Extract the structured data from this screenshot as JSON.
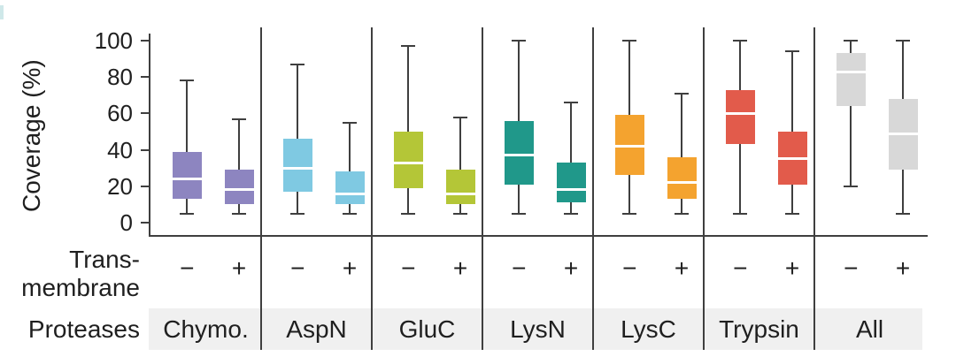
{
  "labels": {
    "ylabel": "Coverage (%)",
    "transmembrane_line1": "Trans-",
    "transmembrane_line2": "membrane",
    "proteases": "Proteases"
  },
  "colors": {
    "axis": "#3f3f3f",
    "median_line": "#ffffff",
    "proteases_band": "#f0f0f0",
    "background": "#ffffff",
    "text": "#1f1f1f"
  },
  "chart_data": {
    "type": "box",
    "title": "",
    "ylabel": "Coverage (%)",
    "ylim": [
      0,
      100
    ],
    "yticks": [
      0,
      20,
      40,
      60,
      80,
      100
    ],
    "grid": false,
    "pair_row_label": "Trans-membrane",
    "group_row_label": "Proteases",
    "pair_labels": [
      "−",
      "+"
    ],
    "groups": [
      {
        "label": "Chymo.",
        "color": "#8d85c0",
        "boxes": [
          {
            "transmembrane": "−",
            "whisker_low": 5,
            "q1": 13,
            "median": 24,
            "q3": 39,
            "whisker_high": 78
          },
          {
            "transmembrane": "+",
            "whisker_low": 5,
            "q1": 10,
            "median": 18,
            "q3": 29,
            "whisker_high": 57
          }
        ]
      },
      {
        "label": "AspN",
        "color": "#7fc9e2",
        "boxes": [
          {
            "transmembrane": "−",
            "whisker_low": 5,
            "q1": 17,
            "median": 30,
            "q3": 46,
            "whisker_high": 87
          },
          {
            "transmembrane": "+",
            "whisker_low": 5,
            "q1": 10,
            "median": 16,
            "q3": 28,
            "whisker_high": 55
          }
        ]
      },
      {
        "label": "GluC",
        "color": "#b4c637",
        "boxes": [
          {
            "transmembrane": "−",
            "whisker_low": 5,
            "q1": 19,
            "median": 33,
            "q3": 50,
            "whisker_high": 97
          },
          {
            "transmembrane": "+",
            "whisker_low": 5,
            "q1": 10,
            "median": 16,
            "q3": 29,
            "whisker_high": 58
          }
        ]
      },
      {
        "label": "LysN",
        "color": "#20988a",
        "boxes": [
          {
            "transmembrane": "−",
            "whisker_low": 5,
            "q1": 21,
            "median": 37,
            "q3": 56,
            "whisker_high": 100
          },
          {
            "transmembrane": "+",
            "whisker_low": 5,
            "q1": 11,
            "median": 18,
            "q3": 33,
            "whisker_high": 66
          }
        ]
      },
      {
        "label": "LysC",
        "color": "#f4a32f",
        "boxes": [
          {
            "transmembrane": "−",
            "whisker_low": 5,
            "q1": 26,
            "median": 42,
            "q3": 59,
            "whisker_high": 100
          },
          {
            "transmembrane": "+",
            "whisker_low": 5,
            "q1": 13,
            "median": 22,
            "q3": 36,
            "whisker_high": 71
          }
        ]
      },
      {
        "label": "Trypsin",
        "color": "#e25b4b",
        "boxes": [
          {
            "transmembrane": "−",
            "whisker_low": 5,
            "q1": 43,
            "median": 60,
            "q3": 73,
            "whisker_high": 100
          },
          {
            "transmembrane": "+",
            "whisker_low": 5,
            "q1": 21,
            "median": 35,
            "q3": 50,
            "whisker_high": 94
          }
        ]
      },
      {
        "label": "All",
        "color": "#d8d8d8",
        "boxes": [
          {
            "transmembrane": "−",
            "whisker_low": 20,
            "q1": 64,
            "median": 83,
            "q3": 93,
            "whisker_high": 100
          },
          {
            "transmembrane": "+",
            "whisker_low": 5,
            "q1": 29,
            "median": 49,
            "q3": 68,
            "whisker_high": 100
          }
        ]
      }
    ]
  }
}
